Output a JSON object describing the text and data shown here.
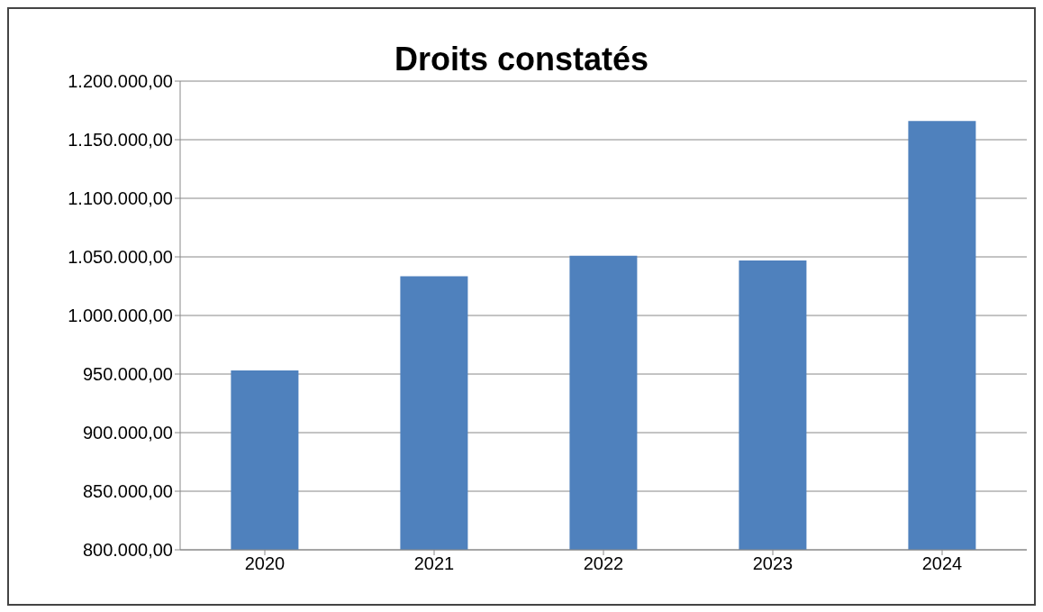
{
  "chart_data": {
    "type": "bar",
    "title": "Droits constatés",
    "categories": [
      "2020",
      "2021",
      "2022",
      "2023",
      "2024"
    ],
    "values": [
      953000,
      1033500,
      1051000,
      1047000,
      1166000
    ],
    "color": "#4f81bd",
    "ylim": [
      800000,
      1200000
    ],
    "yticks": [
      {
        "value": 800000,
        "label": "800.000,00"
      },
      {
        "value": 850000,
        "label": "850.000,00"
      },
      {
        "value": 900000,
        "label": "900.000,00"
      },
      {
        "value": 950000,
        "label": "950.000,00"
      },
      {
        "value": 1000000,
        "label": "1.000.000,00"
      },
      {
        "value": 1050000,
        "label": "1.050.000,00"
      },
      {
        "value": 1100000,
        "label": "1.100.000,00"
      },
      {
        "value": 1150000,
        "label": "1.150.000,00"
      },
      {
        "value": 1200000,
        "label": "1.200.000,00"
      }
    ],
    "grid": "y"
  }
}
